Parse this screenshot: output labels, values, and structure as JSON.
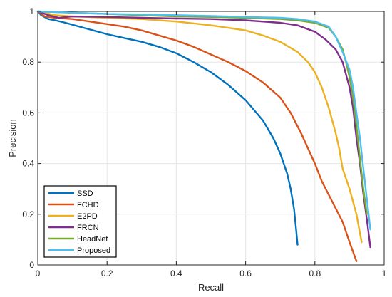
{
  "chart_data": {
    "type": "line",
    "title": "",
    "xlabel": "Recall",
    "ylabel": "Precision",
    "xlim": [
      0,
      1
    ],
    "ylim": [
      0,
      1
    ],
    "xticks": [
      "0",
      "0.2",
      "0.4",
      "0.6",
      "0.8",
      "1"
    ],
    "yticks": [
      "0",
      "0.2",
      "0.4",
      "0.6",
      "0.8",
      "1"
    ],
    "grid": true,
    "legend_position": "bottom-left",
    "series": [
      {
        "name": "SSD",
        "color": "#0072BD",
        "points": [
          [
            0.0,
            1.0
          ],
          [
            0.01,
            0.985
          ],
          [
            0.03,
            0.97
          ],
          [
            0.05,
            0.965
          ],
          [
            0.08,
            0.955
          ],
          [
            0.12,
            0.94
          ],
          [
            0.16,
            0.925
          ],
          [
            0.2,
            0.91
          ],
          [
            0.25,
            0.895
          ],
          [
            0.3,
            0.88
          ],
          [
            0.35,
            0.86
          ],
          [
            0.4,
            0.835
          ],
          [
            0.45,
            0.8
          ],
          [
            0.5,
            0.76
          ],
          [
            0.55,
            0.71
          ],
          [
            0.6,
            0.65
          ],
          [
            0.65,
            0.57
          ],
          [
            0.68,
            0.5
          ],
          [
            0.7,
            0.44
          ],
          [
            0.72,
            0.36
          ],
          [
            0.73,
            0.3
          ],
          [
            0.74,
            0.22
          ],
          [
            0.745,
            0.15
          ],
          [
            0.75,
            0.08
          ]
        ]
      },
      {
        "name": "FCHD",
        "color": "#D95319",
        "points": [
          [
            0.0,
            1.0
          ],
          [
            0.02,
            0.98
          ],
          [
            0.05,
            0.975
          ],
          [
            0.1,
            0.97
          ],
          [
            0.15,
            0.96
          ],
          [
            0.2,
            0.95
          ],
          [
            0.25,
            0.94
          ],
          [
            0.3,
            0.925
          ],
          [
            0.35,
            0.905
          ],
          [
            0.4,
            0.885
          ],
          [
            0.45,
            0.86
          ],
          [
            0.5,
            0.83
          ],
          [
            0.55,
            0.8
          ],
          [
            0.6,
            0.765
          ],
          [
            0.65,
            0.72
          ],
          [
            0.7,
            0.66
          ],
          [
            0.73,
            0.6
          ],
          [
            0.76,
            0.52
          ],
          [
            0.78,
            0.46
          ],
          [
            0.8,
            0.4
          ],
          [
            0.82,
            0.33
          ],
          [
            0.85,
            0.25
          ],
          [
            0.88,
            0.17
          ],
          [
            0.9,
            0.09
          ],
          [
            0.92,
            0.015
          ]
        ]
      },
      {
        "name": "E2PD",
        "color": "#EDB120",
        "points": [
          [
            0.0,
            1.0
          ],
          [
            0.05,
            0.985
          ],
          [
            0.1,
            0.98
          ],
          [
            0.2,
            0.975
          ],
          [
            0.3,
            0.97
          ],
          [
            0.4,
            0.96
          ],
          [
            0.5,
            0.945
          ],
          [
            0.55,
            0.935
          ],
          [
            0.6,
            0.925
          ],
          [
            0.65,
            0.905
          ],
          [
            0.7,
            0.88
          ],
          [
            0.75,
            0.84
          ],
          [
            0.78,
            0.8
          ],
          [
            0.8,
            0.76
          ],
          [
            0.82,
            0.7
          ],
          [
            0.84,
            0.62
          ],
          [
            0.86,
            0.52
          ],
          [
            0.87,
            0.46
          ],
          [
            0.88,
            0.38
          ],
          [
            0.9,
            0.3
          ],
          [
            0.92,
            0.2
          ],
          [
            0.935,
            0.09
          ]
        ]
      },
      {
        "name": "FRCN",
        "color": "#7E2F8E",
        "points": [
          [
            0.0,
            1.0
          ],
          [
            0.03,
            0.985
          ],
          [
            0.06,
            0.975
          ],
          [
            0.1,
            0.98
          ],
          [
            0.2,
            0.978
          ],
          [
            0.3,
            0.975
          ],
          [
            0.4,
            0.972
          ],
          [
            0.5,
            0.97
          ],
          [
            0.6,
            0.965
          ],
          [
            0.7,
            0.955
          ],
          [
            0.75,
            0.945
          ],
          [
            0.8,
            0.92
          ],
          [
            0.83,
            0.89
          ],
          [
            0.86,
            0.85
          ],
          [
            0.88,
            0.8
          ],
          [
            0.9,
            0.7
          ],
          [
            0.91,
            0.62
          ],
          [
            0.92,
            0.5
          ],
          [
            0.93,
            0.4
          ],
          [
            0.94,
            0.28
          ],
          [
            0.95,
            0.18
          ],
          [
            0.96,
            0.07
          ]
        ]
      },
      {
        "name": "HeadNet",
        "color": "#77AC30",
        "points": [
          [
            0.0,
            1.0
          ],
          [
            0.1,
            0.995
          ],
          [
            0.2,
            0.99
          ],
          [
            0.3,
            0.985
          ],
          [
            0.4,
            0.98
          ],
          [
            0.5,
            0.978
          ],
          [
            0.6,
            0.975
          ],
          [
            0.7,
            0.97
          ],
          [
            0.75,
            0.965
          ],
          [
            0.8,
            0.955
          ],
          [
            0.84,
            0.935
          ],
          [
            0.86,
            0.9
          ],
          [
            0.88,
            0.85
          ],
          [
            0.89,
            0.8
          ],
          [
            0.9,
            0.74
          ],
          [
            0.91,
            0.66
          ],
          [
            0.92,
            0.55
          ],
          [
            0.93,
            0.42
          ],
          [
            0.94,
            0.3
          ],
          [
            0.95,
            0.2
          ]
        ]
      },
      {
        "name": "Proposed",
        "color": "#4DBEEE",
        "points": [
          [
            0.0,
            1.0
          ],
          [
            0.1,
            0.995
          ],
          [
            0.2,
            0.99
          ],
          [
            0.3,
            0.988
          ],
          [
            0.4,
            0.985
          ],
          [
            0.5,
            0.982
          ],
          [
            0.6,
            0.978
          ],
          [
            0.7,
            0.975
          ],
          [
            0.75,
            0.97
          ],
          [
            0.8,
            0.96
          ],
          [
            0.84,
            0.94
          ],
          [
            0.86,
            0.9
          ],
          [
            0.88,
            0.84
          ],
          [
            0.9,
            0.77
          ],
          [
            0.91,
            0.7
          ],
          [
            0.92,
            0.6
          ],
          [
            0.93,
            0.5
          ],
          [
            0.94,
            0.38
          ],
          [
            0.95,
            0.26
          ],
          [
            0.96,
            0.14
          ]
        ]
      }
    ]
  }
}
